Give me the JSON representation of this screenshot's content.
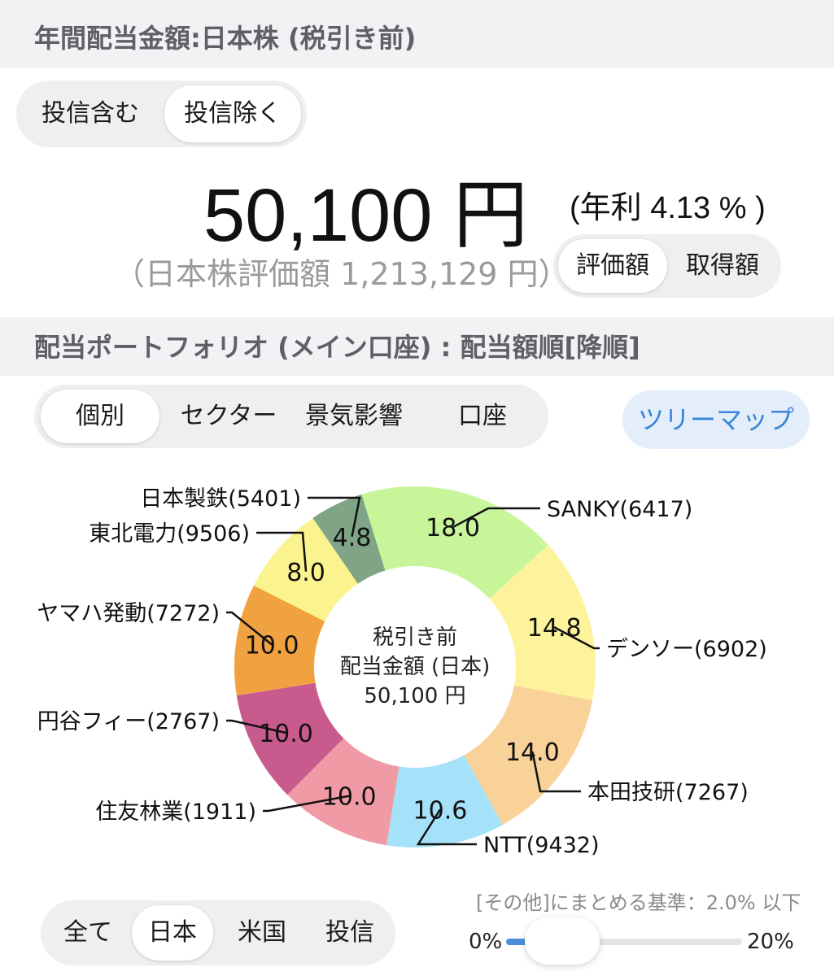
{
  "header": {
    "title": "年間配当金額:日本株 (税引き前)"
  },
  "fund_toggle": {
    "options": [
      "投信含む",
      "投信除く"
    ],
    "selected": 1
  },
  "summary": {
    "amount": "50,100 円",
    "yield": "(年利 4.13 % )",
    "valuation": "（日本株評価額 1,213,129 円）"
  },
  "valuation_toggle": {
    "options": [
      "評価額",
      "取得額"
    ],
    "selected": 0
  },
  "portfolio_header": {
    "title": "配当ポートフォリオ (メイン口座) : 配当額順[降順]"
  },
  "category_tabs": {
    "options": [
      "個別",
      "セクター",
      "景気影響",
      "口座"
    ],
    "selected": 0
  },
  "treemap_button": {
    "label": "ツリーマップ",
    "color": "#3b86d8"
  },
  "chart_data": {
    "type": "pie",
    "center": {
      "line1": "税引き前",
      "line2": "配当金額 (日本)",
      "line3": "50,100 円"
    },
    "slices": [
      {
        "label": "SANKY(6417)",
        "value": 18.0,
        "display": "18.0",
        "color": "#c8f59a"
      },
      {
        "label": "デンソー(6902)",
        "value": 14.8,
        "display": "14.8",
        "color": "#fdf39c"
      },
      {
        "label": "本田技研(7267)",
        "value": 14.0,
        "display": "14.0",
        "color": "#f9d29a"
      },
      {
        "label": "NTT(9432)",
        "value": 10.6,
        "display": "10.6",
        "color": "#a5e1f8"
      },
      {
        "label": "住友林業(1911)",
        "value": 10.0,
        "display": "10.0",
        "color": "#f09aa5"
      },
      {
        "label": "円谷フィー(2767)",
        "value": 10.0,
        "display": "10.0",
        "color": "#c95a8d"
      },
      {
        "label": "ヤマハ発動(7272)",
        "value": 10.0,
        "display": "10.0",
        "color": "#f1a240"
      },
      {
        "label": "東北電力(9506)",
        "value": 8.0,
        "display": "8.0",
        "color": "#fbf48e"
      },
      {
        "label": "日本製鉄(5401)",
        "value": 4.8,
        "display": "4.8",
        "color": "#7fa586"
      }
    ]
  },
  "region_tabs": {
    "options": [
      "全て",
      "日本",
      "米国",
      "投信"
    ],
    "selected": 1
  },
  "other_threshold": {
    "label": "[その他]にまとめる基準：2.0% 以下",
    "min_label": "0%",
    "max_label": "20%",
    "value_percent": 2.0,
    "max_percent": 20
  }
}
